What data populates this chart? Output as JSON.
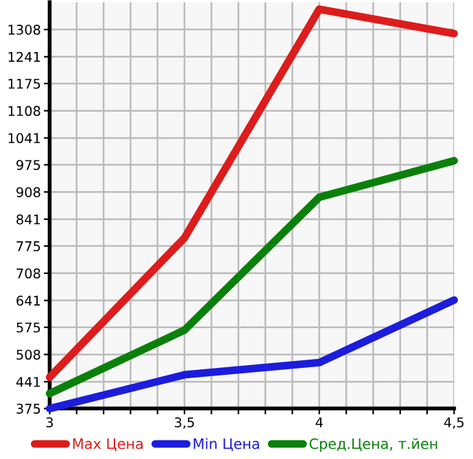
{
  "chart_data": {
    "type": "line",
    "x": [
      3,
      3.5,
      4,
      4.5
    ],
    "series": [
      {
        "name": "Max Цена",
        "color": "#dd1c1c",
        "values": [
          452,
          795,
          1358,
          1298
        ]
      },
      {
        "name": "Min Цена",
        "color": "#1c1cdd",
        "values": [
          375,
          458,
          488,
          642
        ]
      },
      {
        "name": "Сред.Цена, т.йен",
        "color": "#0a800a",
        "values": [
          412,
          568,
          895,
          985
        ]
      }
    ],
    "xlim": [
      3,
      4.5
    ],
    "xticks": [
      {
        "value": 3,
        "label": "3"
      },
      {
        "value": 3.1,
        "label": null
      },
      {
        "value": 3.2,
        "label": null
      },
      {
        "value": 3.3,
        "label": null
      },
      {
        "value": 3.4,
        "label": null
      },
      {
        "value": 3.5,
        "label": "3,5"
      },
      {
        "value": 3.6,
        "label": null
      },
      {
        "value": 3.7,
        "label": null
      },
      {
        "value": 3.8,
        "label": null
      },
      {
        "value": 3.9,
        "label": null
      },
      {
        "value": 4,
        "label": "4"
      },
      {
        "value": 4.1,
        "label": null
      },
      {
        "value": 4.2,
        "label": null
      },
      {
        "value": 4.3,
        "label": null
      },
      {
        "value": 4.4,
        "label": null
      },
      {
        "value": 4.5,
        "label": "4,5"
      }
    ],
    "ylim": [
      375,
      1375
    ],
    "yticks": [
      375,
      441,
      508,
      575,
      641,
      708,
      775,
      841,
      908,
      975,
      1041,
      1108,
      1175,
      1241,
      1308
    ],
    "grid": true,
    "legend": "bottom",
    "marker": "none",
    "line_style": "solid"
  }
}
